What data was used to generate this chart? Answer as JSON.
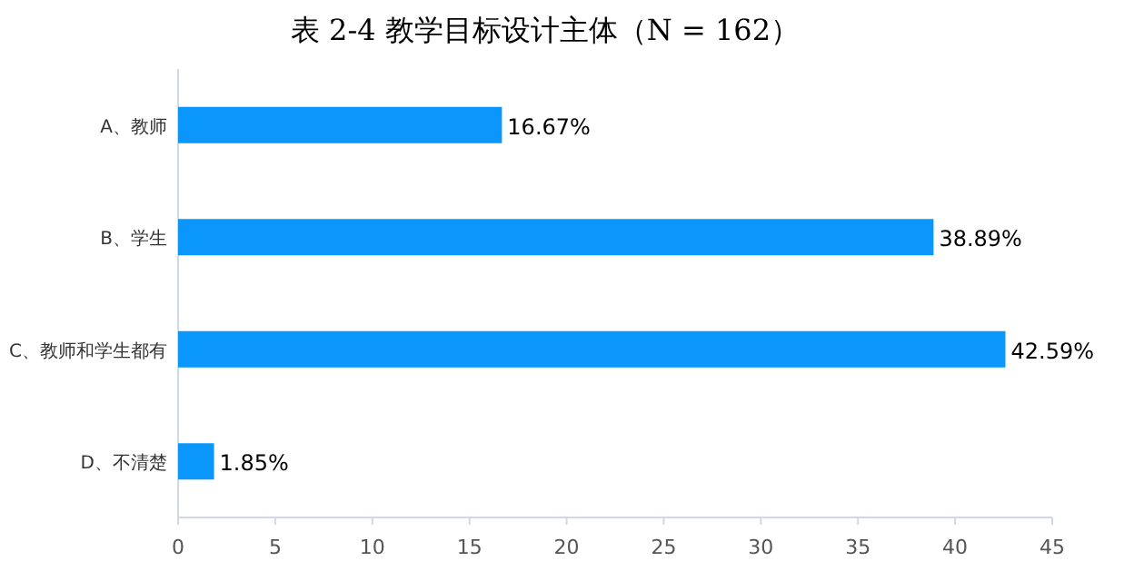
{
  "chart_data": {
    "type": "bar",
    "orientation": "horizontal",
    "title": "表 2-4 教学目标设计主体（N = 162）",
    "categories": [
      "A、教师",
      "B、学生",
      "C、教师和学生都有",
      "D、不清楚"
    ],
    "values": [
      16.67,
      38.89,
      42.59,
      1.85
    ],
    "value_labels": [
      "16.67%",
      "38.89%",
      "42.59%",
      "1.85%"
    ],
    "color": "#0a96fa",
    "xlim": [
      0,
      45
    ],
    "xticks": [
      0,
      5,
      10,
      15,
      20,
      25,
      30,
      35,
      40,
      45
    ],
    "grid": false
  }
}
